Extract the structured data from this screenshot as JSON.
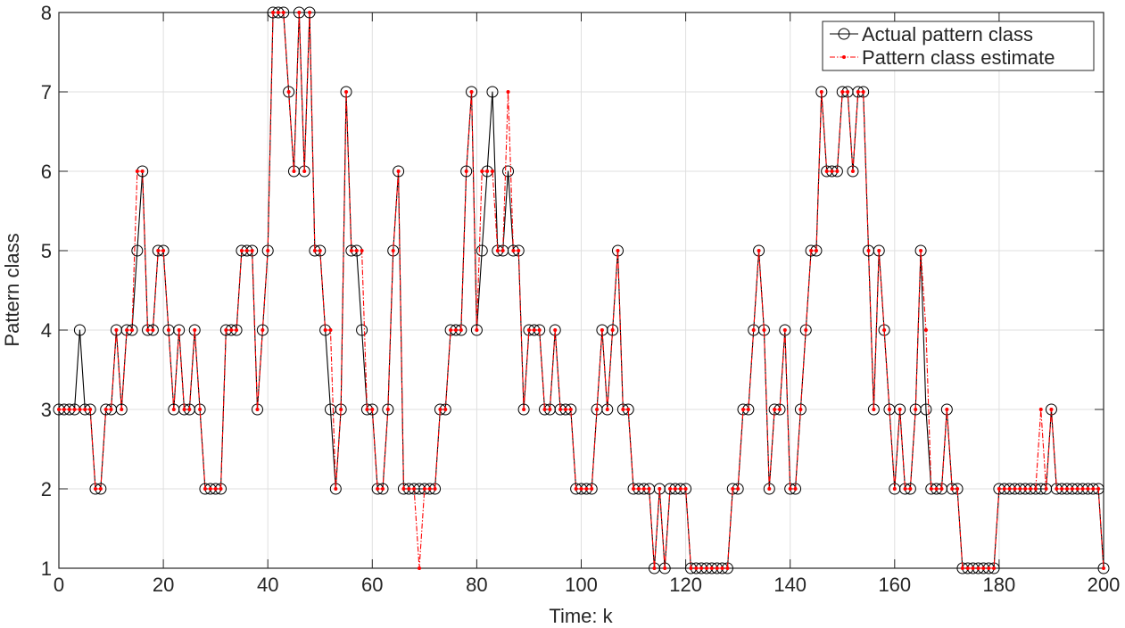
{
  "chart_data": {
    "type": "line",
    "xlabel": "Time: k",
    "ylabel": "Pattern class",
    "xlim": [
      0,
      200
    ],
    "ylim": [
      1,
      8
    ],
    "xticks": [
      0,
      20,
      40,
      60,
      80,
      100,
      120,
      140,
      160,
      180,
      200
    ],
    "yticks": [
      1,
      2,
      3,
      4,
      5,
      6,
      7,
      8
    ],
    "grid": true,
    "legend_position": "top-right",
    "series": [
      {
        "name": "Actual pattern class",
        "color": "#000000",
        "marker": "open-circle",
        "line": "solid",
        "x": [
          0,
          1,
          2,
          3,
          4,
          5,
          6,
          7,
          8,
          9,
          10,
          11,
          12,
          13,
          14,
          15,
          16,
          17,
          18,
          19,
          20,
          21,
          22,
          23,
          24,
          25,
          26,
          27,
          28,
          29,
          30,
          31,
          32,
          33,
          34,
          35,
          36,
          37,
          38,
          39,
          40,
          41,
          42,
          43,
          44,
          45,
          46,
          47,
          48,
          49,
          50,
          51,
          52,
          53,
          54,
          55,
          56,
          57,
          58,
          59,
          60,
          61,
          62,
          63,
          64,
          65,
          66,
          67,
          68,
          69,
          70,
          71,
          72,
          73,
          74,
          75,
          76,
          77,
          78,
          79,
          80,
          81,
          82,
          83,
          84,
          85,
          86,
          87,
          88,
          89,
          90,
          91,
          92,
          93,
          94,
          95,
          96,
          97,
          98,
          99,
          100,
          101,
          102,
          103,
          104,
          105,
          106,
          107,
          108,
          109,
          110,
          111,
          112,
          113,
          114,
          115,
          116,
          117,
          118,
          119,
          120,
          121,
          122,
          123,
          124,
          125,
          126,
          127,
          128,
          129,
          130,
          131,
          132,
          133,
          134,
          135,
          136,
          137,
          138,
          139,
          140,
          141,
          142,
          143,
          144,
          145,
          146,
          147,
          148,
          149,
          150,
          151,
          152,
          153,
          154,
          155,
          156,
          157,
          158,
          159,
          160,
          161,
          162,
          163,
          164,
          165,
          166,
          167,
          168,
          169,
          170,
          171,
          172,
          173,
          174,
          175,
          176,
          177,
          178,
          179,
          180,
          181,
          182,
          183,
          184,
          185,
          186,
          187,
          188,
          189,
          190,
          191,
          192,
          193,
          194,
          195,
          196,
          197,
          198,
          199,
          200
        ],
        "values": [
          3,
          3,
          3,
          3,
          4,
          3,
          3,
          2,
          2,
          3,
          3,
          4,
          3,
          4,
          4,
          5,
          6,
          4,
          4,
          5,
          5,
          4,
          3,
          4,
          3,
          3,
          4,
          3,
          2,
          2,
          2,
          2,
          4,
          4,
          4,
          5,
          5,
          5,
          3,
          4,
          5,
          8,
          8,
          8,
          7,
          6,
          8,
          6,
          8,
          5,
          5,
          4,
          3,
          2,
          3,
          7,
          5,
          5,
          4,
          3,
          3,
          2,
          2,
          3,
          5,
          6,
          2,
          2,
          2,
          2,
          2,
          2,
          2,
          3,
          3,
          4,
          4,
          4,
          6,
          7,
          4,
          5,
          6,
          7,
          5,
          5,
          6,
          5,
          5,
          3,
          4,
          4,
          4,
          3,
          3,
          4,
          3,
          3,
          3,
          2,
          2,
          2,
          2,
          3,
          4,
          3,
          4,
          5,
          3,
          3,
          2,
          2,
          2,
          2,
          1,
          2,
          1,
          2,
          2,
          2,
          2,
          1,
          1,
          1,
          1,
          1,
          1,
          1,
          1,
          2,
          2,
          3,
          3,
          4,
          5,
          4,
          2,
          3,
          3,
          4,
          2,
          2,
          3,
          4,
          5,
          5,
          7,
          6,
          6,
          6,
          7,
          7,
          6,
          7,
          7,
          5,
          3,
          5,
          4,
          3,
          2,
          3,
          2,
          2,
          3,
          5,
          3,
          2,
          2,
          2,
          3,
          2,
          2,
          1,
          1,
          1,
          1,
          1,
          1,
          1,
          2,
          2,
          2,
          2,
          2,
          2,
          2,
          2,
          2,
          2,
          3,
          2,
          2,
          2,
          2,
          2,
          2,
          2,
          2,
          2,
          1
        ]
      },
      {
        "name": "Pattern class estimate",
        "color": "#ff0000",
        "marker": "dot",
        "line": "dash-dot",
        "x": [
          0,
          1,
          2,
          3,
          4,
          5,
          6,
          7,
          8,
          9,
          10,
          11,
          12,
          13,
          14,
          15,
          16,
          17,
          18,
          19,
          20,
          21,
          22,
          23,
          24,
          25,
          26,
          27,
          28,
          29,
          30,
          31,
          32,
          33,
          34,
          35,
          36,
          37,
          38,
          39,
          40,
          41,
          42,
          43,
          44,
          45,
          46,
          47,
          48,
          49,
          50,
          51,
          52,
          53,
          54,
          55,
          56,
          57,
          58,
          59,
          60,
          61,
          62,
          63,
          64,
          65,
          66,
          67,
          68,
          69,
          70,
          71,
          72,
          73,
          74,
          75,
          76,
          77,
          78,
          79,
          80,
          81,
          82,
          83,
          84,
          85,
          86,
          87,
          88,
          89,
          90,
          91,
          92,
          93,
          94,
          95,
          96,
          97,
          98,
          99,
          100,
          101,
          102,
          103,
          104,
          105,
          106,
          107,
          108,
          109,
          110,
          111,
          112,
          113,
          114,
          115,
          116,
          117,
          118,
          119,
          120,
          121,
          122,
          123,
          124,
          125,
          126,
          127,
          128,
          129,
          130,
          131,
          132,
          133,
          134,
          135,
          136,
          137,
          138,
          139,
          140,
          141,
          142,
          143,
          144,
          145,
          146,
          147,
          148,
          149,
          150,
          151,
          152,
          153,
          154,
          155,
          156,
          157,
          158,
          159,
          160,
          161,
          162,
          163,
          164,
          165,
          166,
          167,
          168,
          169,
          170,
          171,
          172,
          173,
          174,
          175,
          176,
          177,
          178,
          179,
          180,
          181,
          182,
          183,
          184,
          185,
          186,
          187,
          188,
          189,
          190,
          191,
          192,
          193,
          194,
          195,
          196,
          197,
          198,
          199,
          200
        ],
        "values": [
          3,
          3,
          3,
          3,
          3,
          3,
          3,
          2,
          2,
          3,
          3,
          4,
          3,
          4,
          4,
          6,
          6,
          4,
          4,
          5,
          5,
          4,
          3,
          4,
          3,
          3,
          4,
          3,
          2,
          2,
          2,
          2,
          4,
          4,
          4,
          5,
          5,
          5,
          3,
          4,
          5,
          8,
          8,
          8,
          7,
          6,
          8,
          6,
          8,
          5,
          5,
          4,
          4,
          2,
          3,
          7,
          5,
          5,
          5,
          3,
          3,
          2,
          2,
          3,
          5,
          6,
          2,
          2,
          2,
          1,
          2,
          2,
          2,
          3,
          3,
          4,
          4,
          4,
          6,
          7,
          4,
          6,
          6,
          6,
          5,
          5,
          7,
          5,
          5,
          3,
          4,
          4,
          4,
          3,
          3,
          4,
          3,
          3,
          3,
          2,
          2,
          2,
          2,
          3,
          4,
          3,
          4,
          5,
          3,
          3,
          2,
          2,
          2,
          2,
          1,
          2,
          1,
          2,
          2,
          2,
          2,
          1,
          1,
          1,
          1,
          1,
          1,
          1,
          1,
          2,
          2,
          3,
          3,
          4,
          5,
          4,
          2,
          3,
          3,
          4,
          2,
          2,
          3,
          4,
          5,
          5,
          7,
          6,
          6,
          6,
          7,
          7,
          6,
          7,
          7,
          5,
          3,
          5,
          4,
          3,
          2,
          3,
          2,
          2,
          3,
          5,
          4,
          2,
          2,
          2,
          3,
          2,
          2,
          1,
          1,
          1,
          1,
          1,
          1,
          1,
          2,
          2,
          2,
          2,
          2,
          2,
          2,
          2,
          3,
          2,
          3,
          2,
          2,
          2,
          2,
          2,
          2,
          2,
          2,
          2,
          1
        ]
      }
    ]
  }
}
